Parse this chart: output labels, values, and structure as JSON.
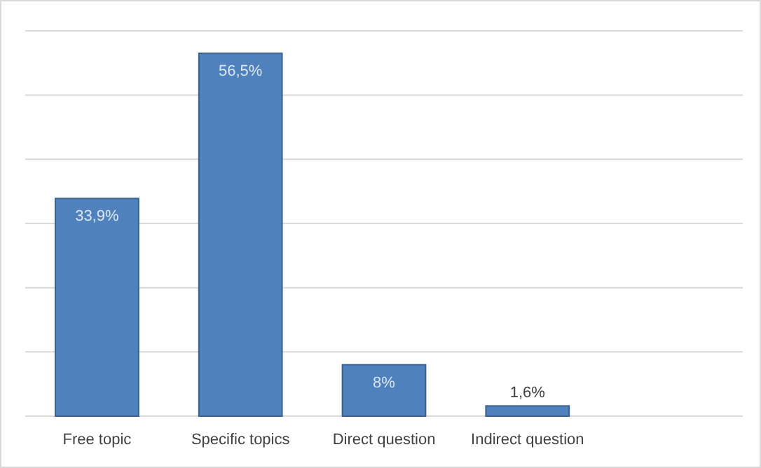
{
  "chart_data": {
    "type": "bar",
    "categories": [
      "Free topic",
      "Specific topics",
      "Direct question",
      "Indirect question"
    ],
    "values": [
      33.9,
      56.5,
      8,
      1.6
    ],
    "value_labels": [
      "33,9%",
      "56,5%",
      "8%",
      "1,6%"
    ],
    "color": "#4f81bd",
    "ylim": [
      0,
      60
    ],
    "yticks": [
      0,
      10,
      20,
      30,
      40,
      50,
      60
    ],
    "grid": "y",
    "tick_labels": "x"
  }
}
